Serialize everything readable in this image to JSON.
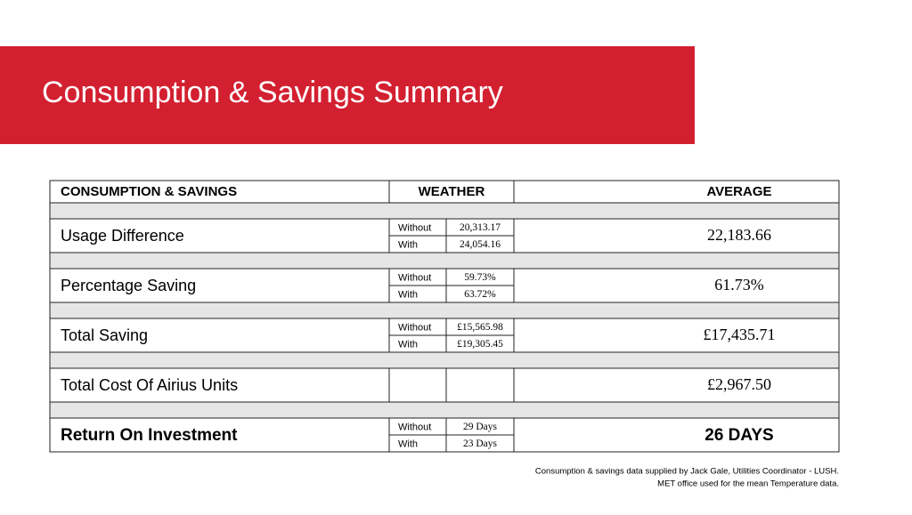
{
  "header": {
    "title": "Consumption & Savings Summary"
  },
  "table": {
    "columns": [
      "CONSUMPTION & SAVINGS",
      "WEATHER",
      "AVERAGE"
    ],
    "rows": [
      {
        "label": "Usage Difference",
        "without_label": "Without",
        "without": "20,313.17",
        "with_label": "With",
        "with": "24,054.16",
        "average": "22,183.66"
      },
      {
        "label": "Percentage Saving",
        "without_label": "Without",
        "without": "59.73%",
        "with_label": "With",
        "with": "63.72%",
        "average": "61.73%"
      },
      {
        "label": "Total Saving",
        "without_label": "Without",
        "without": "£15,565.98",
        "with_label": "With",
        "with": "£19,305.45",
        "average": "£17,435.71"
      },
      {
        "label": "Total Cost Of Airius Units",
        "average": "£2,967.50"
      },
      {
        "label": "Return On Investment",
        "without_label": "Without",
        "without": "29 Days",
        "with_label": "With",
        "with": "23 Days",
        "average": "26 DAYS",
        "bold": true
      }
    ]
  },
  "footnote": [
    "Consumption & savings data supplied by Jack Gale, Utilities Coordinator - LUSH.",
    "MET office used for the mean Temperature data."
  ]
}
